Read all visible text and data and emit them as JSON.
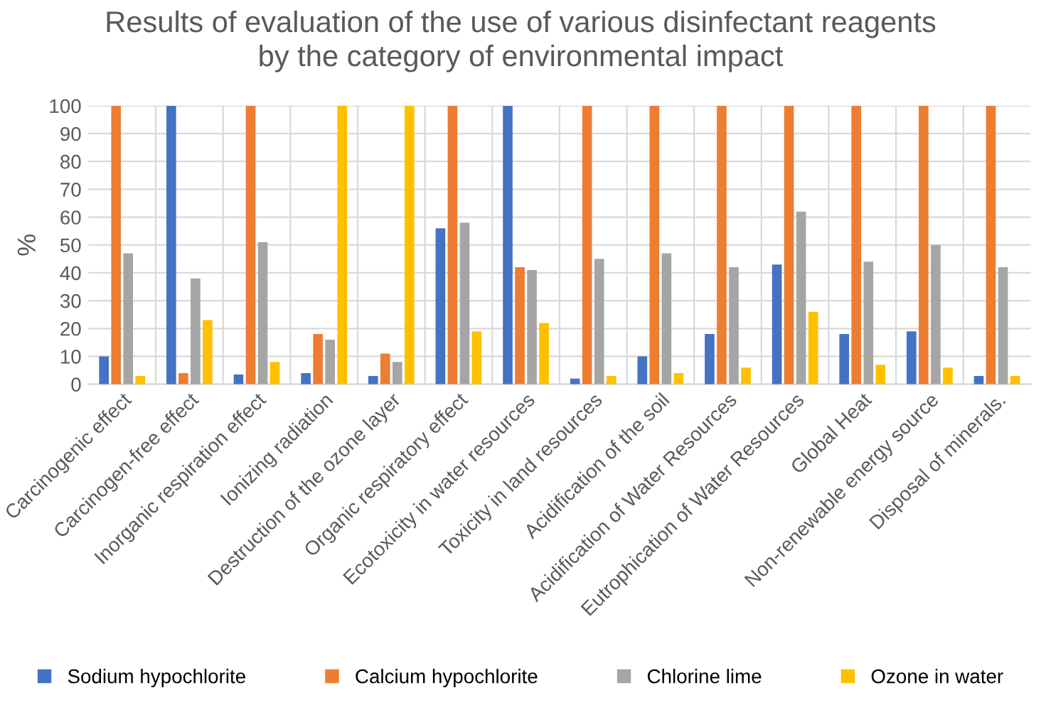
{
  "chart_data": {
    "type": "bar",
    "title": "Results of evaluation of the use of various disinfectant reagents\nby the category of environmental impact",
    "ylabel": "%",
    "categories": [
      "Carcinogenic effect",
      "Carcinogen-free effect",
      "Inorganic respiration effect",
      "Ionizing radiation",
      "Destruction of the ozone layer",
      "Organic respiratory effect",
      "Ecotoxicity in water resources",
      "Toxicity in land resources",
      "Acidification of the soil",
      "Acidification of Water Resources",
      "Eutrophication of Water Resources",
      "Global Heat",
      "Non-renewable energy source",
      "Disposal of minerals."
    ],
    "series": [
      {
        "name": "Sodium hypochlorite",
        "color": "#4472c4",
        "values": [
          10,
          100,
          3.5,
          4,
          3,
          56,
          100,
          2,
          10,
          18,
          43,
          18,
          19,
          3
        ]
      },
      {
        "name": "Calcium hypochlorite",
        "color": "#ed7d31",
        "values": [
          100,
          4,
          100,
          18,
          11,
          100,
          42,
          100,
          100,
          100,
          100,
          100,
          100,
          100
        ]
      },
      {
        "name": "Chlorine lime",
        "color": "#a5a5a5",
        "values": [
          47,
          38,
          51,
          16,
          8,
          58,
          41,
          45,
          47,
          42,
          62,
          44,
          50,
          42
        ]
      },
      {
        "name": "Ozone in water",
        "color": "#ffc000",
        "values": [
          3,
          23,
          8,
          100,
          100,
          19,
          22,
          3,
          4,
          6,
          26,
          7,
          6,
          3
        ]
      }
    ],
    "ylim": [
      0,
      100
    ],
    "yticks": [
      0,
      10,
      20,
      30,
      40,
      50,
      60,
      70,
      80,
      90,
      100
    ],
    "grid": true,
    "legend": "bottom"
  }
}
